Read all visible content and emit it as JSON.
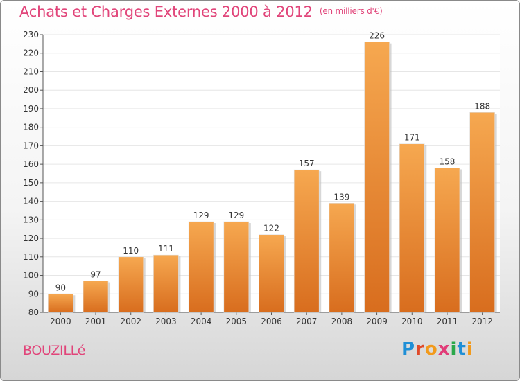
{
  "header": {
    "title": "Achats et Charges Externes 2000 à 2012",
    "unit": "(en milliers d'€)"
  },
  "footer": {
    "commune": "BOUZILLé",
    "brand": "Proxiti"
  },
  "colors": {
    "title": "#e1457a",
    "bar_light": "#f6a850",
    "bar_dark": "#d86d1e",
    "grid": "#e6e6e6"
  },
  "chart_data": {
    "type": "bar",
    "categories": [
      "2000",
      "2001",
      "2002",
      "2003",
      "2004",
      "2005",
      "2006",
      "2007",
      "2008",
      "2009",
      "2010",
      "2011",
      "2012"
    ],
    "values": [
      90,
      97,
      110,
      111,
      129,
      129,
      122,
      157,
      139,
      226,
      171,
      158,
      188
    ],
    "ylim": [
      80,
      230
    ],
    "yticks": [
      80,
      90,
      100,
      110,
      120,
      130,
      140,
      150,
      160,
      170,
      180,
      190,
      200,
      210,
      220,
      230
    ],
    "grid": true,
    "data_labels": true
  }
}
